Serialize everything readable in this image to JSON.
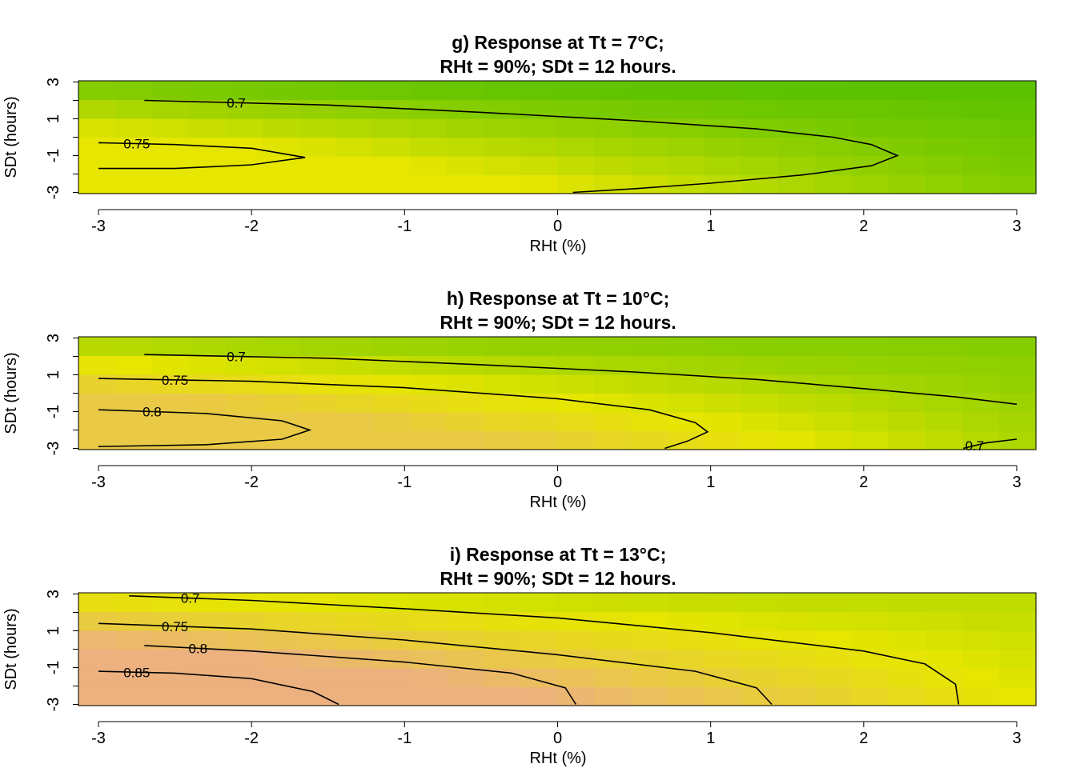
{
  "chart_data": [
    {
      "type": "heatmap",
      "title": "g) Response at Tt = 7°C;",
      "subtitle": "RHt = 90%; SDt = 12 hours.",
      "xlabel": "RHt (%)",
      "ylabel": "SDt (hours)",
      "xlim": [
        -3,
        3
      ],
      "ylim": [
        -3,
        3
      ],
      "x_ticks": [
        "-3",
        "-2",
        "-1",
        "0",
        "1",
        "2",
        "3"
      ],
      "y_tick_labels": [
        "-3",
        "-1",
        "1",
        "3"
      ],
      "colors": {
        "low": "#4cbe00",
        "mid": "#e6e600",
        "high": "#ecb17f"
      },
      "contours": [
        {
          "level": 0.7,
          "label": "0.7",
          "points": [
            [
              -2.7,
              2.0
            ],
            [
              -1.5,
              1.75
            ],
            [
              -0.5,
              1.35
            ],
            [
              0.5,
              0.9
            ],
            [
              1.3,
              0.45
            ],
            [
              1.8,
              0.0
            ],
            [
              2.05,
              -0.4
            ],
            [
              2.22,
              -1.0
            ],
            [
              2.05,
              -1.55
            ],
            [
              1.6,
              -2.05
            ],
            [
              1.0,
              -2.5
            ],
            [
              0.5,
              -2.8
            ],
            [
              0.1,
              -3.0
            ]
          ]
        },
        {
          "level": 0.75,
          "label": "0.75",
          "points": [
            [
              -3.0,
              -0.3
            ],
            [
              -2.5,
              -0.4
            ],
            [
              -2.0,
              -0.6
            ],
            [
              -1.65,
              -1.1
            ],
            [
              -2.0,
              -1.5
            ],
            [
              -2.5,
              -1.7
            ],
            [
              -3.0,
              -1.7
            ]
          ]
        }
      ]
    },
    {
      "type": "heatmap",
      "title": "h) Response at Tt = 10°C;",
      "subtitle": "RHt = 90%; SDt = 12 hours.",
      "xlabel": "RHt (%)",
      "ylabel": "SDt (hours)",
      "xlim": [
        -3,
        3
      ],
      "ylim": [
        -3,
        3
      ],
      "x_ticks": [
        "-3",
        "-2",
        "-1",
        "0",
        "1",
        "2",
        "3"
      ],
      "y_tick_labels": [
        "-3",
        "-1",
        "1",
        "3"
      ],
      "colors": {
        "low": "#4cbe00",
        "mid": "#e6e600",
        "high": "#ecb17f"
      },
      "contours": [
        {
          "level": 0.7,
          "label": "0.7",
          "points": [
            [
              -2.7,
              2.1
            ],
            [
              -1.5,
              1.9
            ],
            [
              -0.5,
              1.55
            ],
            [
              0.5,
              1.15
            ],
            [
              1.3,
              0.75
            ],
            [
              2.0,
              0.25
            ],
            [
              2.6,
              -0.2
            ],
            [
              3.0,
              -0.6
            ]
          ]
        },
        {
          "level": 0.75,
          "label": "0.75",
          "points": [
            [
              -3.0,
              0.8
            ],
            [
              -2.0,
              0.65
            ],
            [
              -1.0,
              0.3
            ],
            [
              0.0,
              -0.3
            ],
            [
              0.6,
              -0.9
            ],
            [
              0.9,
              -1.6
            ],
            [
              0.98,
              -2.1
            ],
            [
              0.85,
              -2.6
            ],
            [
              0.7,
              -3.0
            ]
          ]
        },
        {
          "level": 0.8,
          "label": "0.8",
          "points": [
            [
              -3.0,
              -0.9
            ],
            [
              -2.3,
              -1.1
            ],
            [
              -1.8,
              -1.5
            ],
            [
              -1.62,
              -2.0
            ],
            [
              -1.8,
              -2.5
            ],
            [
              -2.3,
              -2.8
            ],
            [
              -3.0,
              -2.9
            ]
          ]
        },
        {
          "level": 0.7,
          "label": "0.7",
          "points": [
            [
              2.65,
              -3.0
            ],
            [
              2.8,
              -2.7
            ],
            [
              3.0,
              -2.5
            ]
          ]
        }
      ]
    },
    {
      "type": "heatmap",
      "title": "i) Response at Tt = 13°C;",
      "subtitle": "RHt = 90%; SDt = 12 hours.",
      "xlabel": "RHt (%)",
      "ylabel": "SDt (hours)",
      "xlim": [
        -3,
        3
      ],
      "ylim": [
        -3,
        3
      ],
      "x_ticks": [
        "-3",
        "-2",
        "-1",
        "0",
        "1",
        "2",
        "3"
      ],
      "y_tick_labels": [
        "-3",
        "-1",
        "1",
        "3"
      ],
      "colors": {
        "low": "#4cbe00",
        "mid": "#e6e600",
        "high": "#ecb17f"
      },
      "contours": [
        {
          "level": 0.7,
          "label": "0.7",
          "points": [
            [
              -2.8,
              2.9
            ],
            [
              -2.0,
              2.65
            ],
            [
              -1.0,
              2.2
            ],
            [
              0.0,
              1.7
            ],
            [
              1.0,
              0.9
            ],
            [
              2.0,
              -0.1
            ],
            [
              2.4,
              -0.8
            ],
            [
              2.6,
              -1.9
            ],
            [
              2.62,
              -3.0
            ]
          ]
        },
        {
          "level": 0.75,
          "label": "0.75",
          "points": [
            [
              -3.0,
              1.4
            ],
            [
              -2.0,
              1.1
            ],
            [
              -1.0,
              0.5
            ],
            [
              0.0,
              -0.3
            ],
            [
              0.9,
              -1.2
            ],
            [
              1.3,
              -2.1
            ],
            [
              1.4,
              -3.0
            ]
          ]
        },
        {
          "level": 0.8,
          "label": "0.8",
          "points": [
            [
              -2.7,
              0.2
            ],
            [
              -2.0,
              -0.1
            ],
            [
              -1.0,
              -0.7
            ],
            [
              -0.3,
              -1.3
            ],
            [
              0.05,
              -2.1
            ],
            [
              0.12,
              -3.0
            ]
          ]
        },
        {
          "level": 0.85,
          "label": "0.85",
          "points": [
            [
              -3.0,
              -1.2
            ],
            [
              -2.5,
              -1.3
            ],
            [
              -2.0,
              -1.6
            ],
            [
              -1.6,
              -2.3
            ],
            [
              -1.43,
              -3.0
            ]
          ]
        }
      ]
    }
  ]
}
